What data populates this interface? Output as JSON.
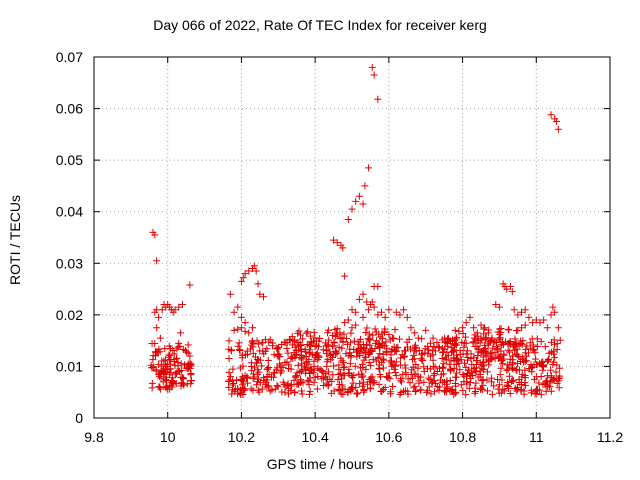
{
  "chart_data": {
    "type": "scatter",
    "title": "Day 066 of 2022, Rate Of TEC Index for receiver kerg",
    "xlabel": "GPS time / hours",
    "ylabel": "ROTI / TECUs",
    "xlim": [
      9.8,
      11.2
    ],
    "ylim": [
      0,
      0.07
    ],
    "xticks": [
      "9.8",
      "10",
      "10.2",
      "10.4",
      "10.6",
      "10.8",
      "11",
      "11.2"
    ],
    "yticks": [
      "0",
      "0.01",
      "0.02",
      "0.03",
      "0.04",
      "0.05",
      "0.06",
      "0.07"
    ],
    "grid": true,
    "marker": "plus",
    "color": "#e00000",
    "series": [
      {
        "points": [
          [
            9.96,
            0.036
          ],
          [
            9.965,
            0.0355
          ],
          [
            9.97,
            0.0305
          ],
          [
            9.965,
            0.0205
          ],
          [
            9.97,
            0.021
          ],
          [
            9.975,
            0.0195
          ],
          [
            9.985,
            0.021
          ],
          [
            9.99,
            0.022
          ],
          [
            9.995,
            0.0215
          ],
          [
            10.0,
            0.022
          ],
          [
            10.005,
            0.0215
          ],
          [
            10.01,
            0.021
          ],
          [
            10.015,
            0.0205
          ],
          [
            10.02,
            0.021
          ],
          [
            10.03,
            0.0215
          ],
          [
            10.04,
            0.022
          ],
          [
            10.06,
            0.0258
          ],
          [
            9.97,
            0.0175
          ],
          [
            9.98,
            0.0155
          ],
          [
            10.035,
            0.0165
          ],
          [
            10.17,
            0.024
          ],
          [
            10.18,
            0.0205
          ],
          [
            10.19,
            0.0215
          ],
          [
            10.2,
            0.0265
          ],
          [
            10.205,
            0.0272
          ],
          [
            10.21,
            0.028
          ],
          [
            10.22,
            0.0285
          ],
          [
            10.23,
            0.029
          ],
          [
            10.235,
            0.0295
          ],
          [
            10.24,
            0.0285
          ],
          [
            10.245,
            0.026
          ],
          [
            10.25,
            0.024
          ],
          [
            10.26,
            0.0235
          ],
          [
            10.2,
            0.0195
          ],
          [
            10.21,
            0.0185
          ],
          [
            10.23,
            0.0175
          ],
          [
            10.18,
            0.017
          ],
          [
            10.19,
            0.0172
          ],
          [
            10.2,
            0.0175
          ],
          [
            10.21,
            0.0168
          ],
          [
            10.22,
            0.0165
          ],
          [
            10.45,
            0.0345
          ],
          [
            10.46,
            0.034
          ],
          [
            10.47,
            0.0335
          ],
          [
            10.475,
            0.033
          ],
          [
            10.48,
            0.0275
          ],
          [
            10.49,
            0.0385
          ],
          [
            10.5,
            0.0405
          ],
          [
            10.51,
            0.042
          ],
          [
            10.52,
            0.043
          ],
          [
            10.53,
            0.0415
          ],
          [
            10.535,
            0.045
          ],
          [
            10.545,
            0.0485
          ],
          [
            10.555,
            0.068
          ],
          [
            10.56,
            0.0665
          ],
          [
            10.57,
            0.0618
          ],
          [
            10.56,
            0.0255
          ],
          [
            10.57,
            0.0255
          ],
          [
            10.52,
            0.023
          ],
          [
            10.53,
            0.024
          ],
          [
            10.54,
            0.0225
          ],
          [
            10.55,
            0.022
          ],
          [
            10.5,
            0.021
          ],
          [
            10.51,
            0.0205
          ],
          [
            10.53,
            0.0195
          ],
          [
            10.545,
            0.021
          ],
          [
            10.555,
            0.0225
          ],
          [
            10.56,
            0.0215
          ],
          [
            10.57,
            0.02
          ],
          [
            10.58,
            0.0205
          ],
          [
            10.59,
            0.0195
          ],
          [
            10.48,
            0.0185
          ],
          [
            10.49,
            0.019
          ],
          [
            10.5,
            0.0175
          ],
          [
            10.51,
            0.018
          ],
          [
            10.6,
            0.021
          ],
          [
            10.62,
            0.0205
          ],
          [
            10.63,
            0.02
          ],
          [
            10.64,
            0.021
          ],
          [
            10.65,
            0.0195
          ],
          [
            10.66,
            0.0175
          ],
          [
            10.67,
            0.0165
          ],
          [
            10.68,
            0.0155
          ],
          [
            10.7,
            0.017
          ],
          [
            10.72,
            0.0155
          ],
          [
            10.78,
            0.017
          ],
          [
            10.79,
            0.0168
          ],
          [
            10.8,
            0.0175
          ],
          [
            10.81,
            0.0185
          ],
          [
            10.82,
            0.0195
          ],
          [
            10.83,
            0.0175
          ],
          [
            10.84,
            0.0165
          ],
          [
            10.85,
            0.018
          ],
          [
            10.86,
            0.0175
          ],
          [
            10.87,
            0.0165
          ],
          [
            10.88,
            0.0155
          ],
          [
            10.89,
            0.022
          ],
          [
            10.9,
            0.0215
          ],
          [
            10.91,
            0.026
          ],
          [
            10.915,
            0.0255
          ],
          [
            10.92,
            0.025
          ],
          [
            10.93,
            0.0255
          ],
          [
            10.935,
            0.0245
          ],
          [
            10.94,
            0.021
          ],
          [
            10.95,
            0.02
          ],
          [
            10.96,
            0.0205
          ],
          [
            10.97,
            0.021
          ],
          [
            10.98,
            0.0195
          ],
          [
            10.99,
            0.0185
          ],
          [
            11.0,
            0.019
          ],
          [
            11.01,
            0.0185
          ],
          [
            11.02,
            0.019
          ],
          [
            11.03,
            0.0175
          ],
          [
            11.04,
            0.02
          ],
          [
            11.045,
            0.0215
          ],
          [
            11.05,
            0.0205
          ],
          [
            11.06,
            0.0175
          ],
          [
            10.97,
            0.018
          ],
          [
            10.96,
            0.0175
          ],
          [
            10.95,
            0.017
          ],
          [
            11.04,
            0.0588
          ],
          [
            11.05,
            0.058
          ],
          [
            11.055,
            0.0575
          ],
          [
            11.06,
            0.056
          ]
        ]
      }
    ]
  }
}
